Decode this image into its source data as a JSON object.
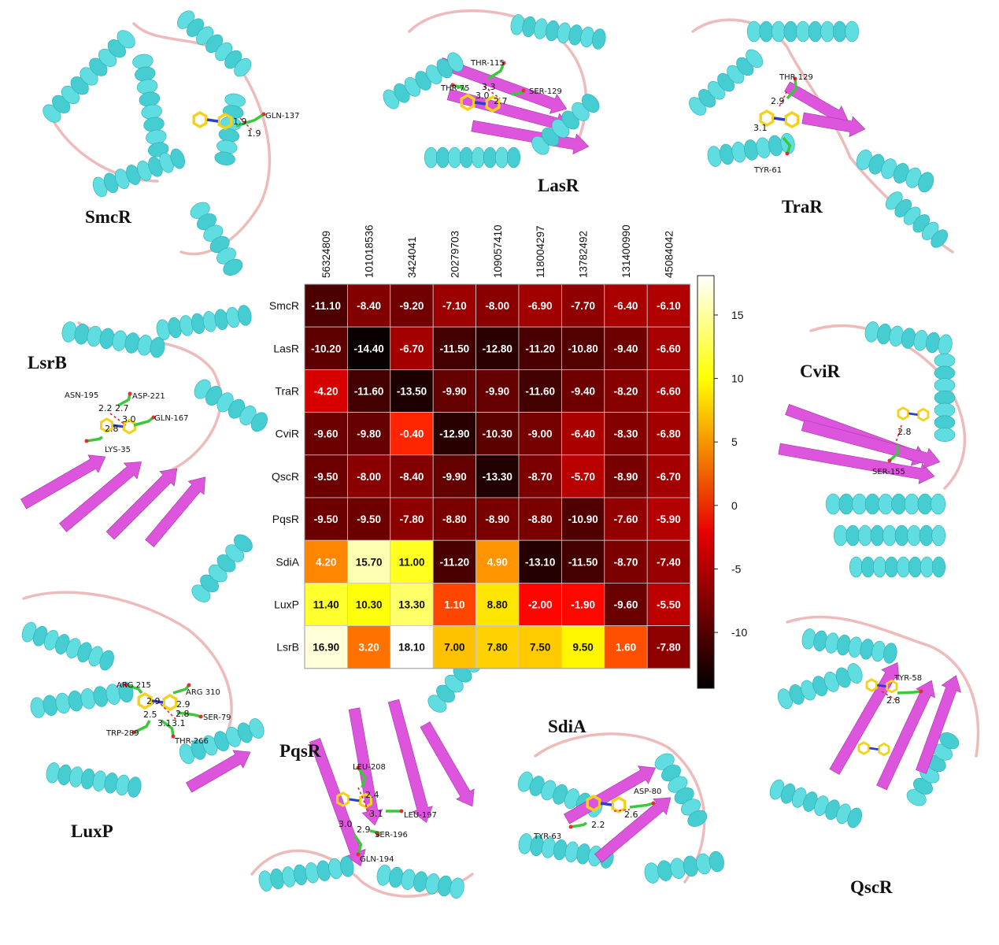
{
  "chart_data": {
    "type": "heatmap",
    "rows": [
      "SmcR",
      "LasR",
      "TraR",
      "CviR",
      "QscR",
      "PqsR",
      "SdiA",
      "LuxP",
      "LsrB"
    ],
    "columns": [
      "56324809",
      "101018536",
      "3424041",
      "20279703",
      "109057410",
      "118004297",
      "13782492",
      "131400990",
      "45084042"
    ],
    "values": [
      [
        -11.1,
        -8.4,
        -9.2,
        -7.1,
        -8.0,
        -6.9,
        -7.7,
        -6.4,
        -6.1
      ],
      [
        -10.2,
        -14.4,
        -6.7,
        -11.5,
        -12.8,
        -11.2,
        -10.8,
        -9.4,
        -6.6
      ],
      [
        -4.2,
        -11.6,
        -13.5,
        -9.9,
        -9.9,
        -11.6,
        -9.4,
        -8.2,
        -6.6
      ],
      [
        -9.6,
        -9.8,
        -0.4,
        -12.9,
        -10.3,
        -9.0,
        -6.4,
        -8.3,
        -6.8
      ],
      [
        -9.5,
        -8.0,
        -8.4,
        -9.9,
        -13.3,
        -8.7,
        -5.7,
        -8.9,
        -6.7
      ],
      [
        -9.5,
        -9.5,
        -7.8,
        -8.8,
        -8.9,
        -8.8,
        -10.9,
        -7.6,
        -5.9
      ],
      [
        4.2,
        15.7,
        11.0,
        -11.2,
        4.9,
        -13.1,
        -11.5,
        -8.7,
        -7.4
      ],
      [
        11.4,
        10.3,
        13.3,
        1.1,
        8.8,
        -2.0,
        -1.9,
        -9.6,
        -5.5
      ],
      [
        16.9,
        3.2,
        18.1,
        7.0,
        7.8,
        7.5,
        9.5,
        1.6,
        -7.8
      ]
    ],
    "cell_labels": [
      [
        "-11.10",
        "-8.40",
        "-9.20",
        "-7.10",
        "-8.00",
        "-6.90",
        "-7.70",
        "-6.40",
        "-6.10"
      ],
      [
        "-10.20",
        "-14.40",
        "-6.70",
        "-11.50",
        "-12.80",
        "-11.20",
        "-10.80",
        "-9.40",
        "-6.60"
      ],
      [
        "-4.20",
        "-11.60",
        "-13.50",
        "-9.90",
        "-9.90",
        "-11.60",
        "-9.40",
        "-8.20",
        "-6.60"
      ],
      [
        "-9.60",
        "-9.80",
        "-0.40",
        "-12.90",
        "-10.30",
        "-9.00",
        "-6.40",
        "-8.30",
        "-6.80"
      ],
      [
        "-9.50",
        "-8.00",
        "-8.40",
        "-9.90",
        "-13.30",
        "-8.70",
        "-5.70",
        "-8.90",
        "-6.70"
      ],
      [
        "-9.50",
        "-9.50",
        "-7.80",
        "-8.80",
        "-8.90",
        "-8.80",
        "-10.90",
        "-7.60",
        "-5.90"
      ],
      [
        "4.20",
        "15.70",
        "11.00",
        "-11.20",
        "4.90",
        "-13.10",
        "-11.50",
        "-8.70",
        "-7.40"
      ],
      [
        "11.40",
        "10.30",
        "13.30",
        "1.10",
        "8.80",
        "-2.00",
        "-1.90",
        "-9.60",
        "-5.50"
      ],
      [
        "16.90",
        "3.20",
        "18.10",
        "7.00",
        "7.80",
        "7.50",
        "9.50",
        "1.60",
        "-7.80"
      ]
    ],
    "colorbar": {
      "colormap": "hot",
      "vmin": -14.4,
      "vmax": 18.1,
      "ticks": [
        -10,
        -5,
        0,
        5,
        10,
        15
      ],
      "tick_labels": [
        "-10",
        "-5",
        "0",
        "5",
        "10",
        "15"
      ]
    },
    "structure_panels": [
      {
        "protein": "SmcR",
        "residues": [
          "GLN-137"
        ],
        "distances": [
          "1.9",
          "1.9"
        ]
      },
      {
        "protein": "LasR",
        "residues": [
          "THR-115",
          "THR-75",
          "SER-129"
        ],
        "distances": [
          "3.3",
          "3.0",
          "2.7"
        ]
      },
      {
        "protein": "TraR",
        "residues": [
          "THR 129",
          "TYR-61"
        ],
        "distances": [
          "2.9",
          "3.1"
        ]
      },
      {
        "protein": "LsrB",
        "residues": [
          "ASN-195",
          "ASP-221",
          "GLN-167",
          "LYS-35"
        ],
        "distances": [
          "2.2",
          "2.7",
          "3.0",
          "2.8"
        ]
      },
      {
        "protein": "CviR",
        "residues": [
          "SER-155"
        ],
        "distances": [
          "2.8"
        ]
      },
      {
        "protein": "LuxP",
        "residues": [
          "ARG 215",
          "ARG 310",
          "SER-79",
          "TRP-289",
          "THR-266"
        ],
        "distances": [
          "2.9",
          "2.9",
          "2.5",
          "2.8",
          "3.1",
          "3.1"
        ]
      },
      {
        "protein": "PqsR",
        "residues": [
          "LEU-208",
          "LEU-197",
          "SER-196",
          "GLN-194"
        ],
        "distances": [
          "2.4",
          "3.1",
          "3.0",
          "2.9"
        ]
      },
      {
        "protein": "SdiA",
        "residues": [
          "ASP-80",
          "TYR-63"
        ],
        "distances": [
          "2.2",
          "2.6"
        ]
      },
      {
        "protein": "QscR",
        "residues": [
          "TYR-58"
        ],
        "distances": [
          "2.8"
        ]
      }
    ],
    "colors": {
      "helix": "#5fdde0",
      "sheet": "#dd55dd",
      "loop": "#eebbbb",
      "ligand": "#f2d21c",
      "residue": "#3cc83c"
    }
  }
}
